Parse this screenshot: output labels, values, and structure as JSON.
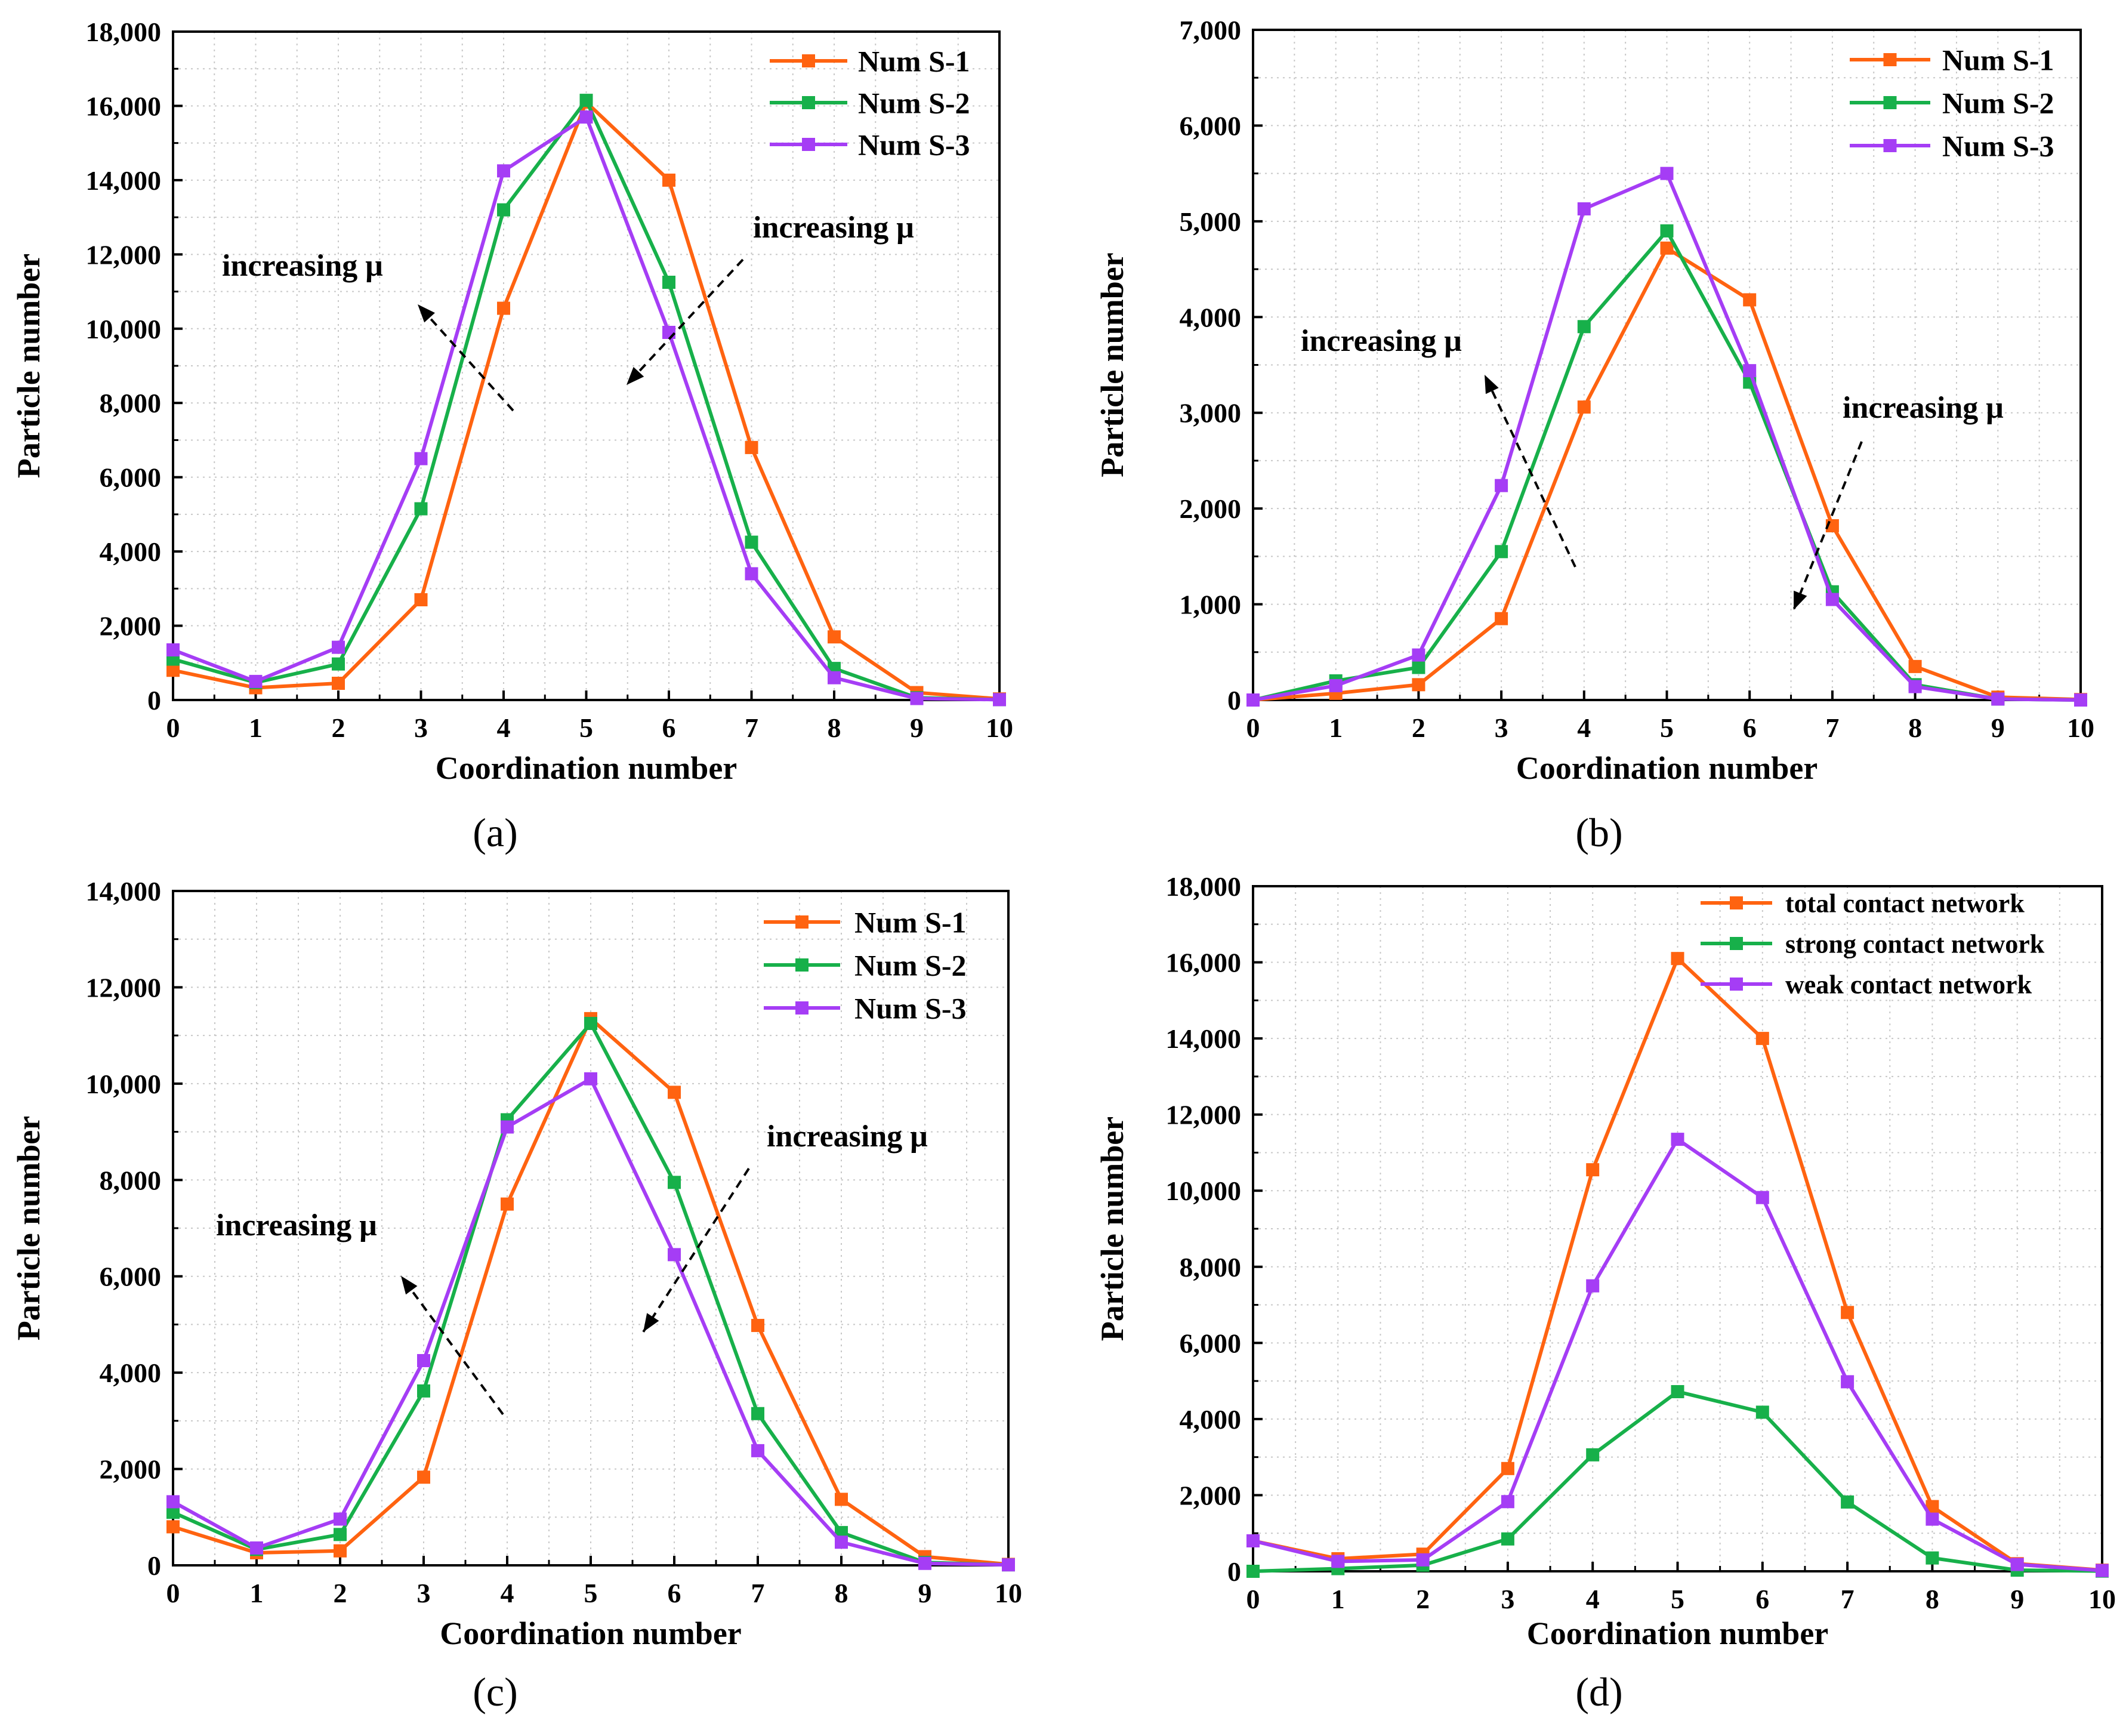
{
  "figure": {
    "panels": [
      {
        "caption": "(a)",
        "legend": [
          "Num S-1",
          "Num S-2",
          "Num S-3"
        ],
        "annotations": [
          "increasing μ",
          "increasing μ"
        ]
      },
      {
        "caption": "(b)",
        "legend": [
          "Num S-1",
          "Num S-2",
          "Num S-3"
        ],
        "annotations": [
          "increasing μ",
          "increasing μ"
        ]
      },
      {
        "caption": "(c)",
        "legend": [
          "Num S-1",
          "Num S-2",
          "Num S-3"
        ],
        "annotations": [
          "increasing μ",
          "increasing μ"
        ]
      },
      {
        "caption": "(d)",
        "legend": [
          "total contact network",
          "strong contact network",
          "weak contact network"
        ],
        "annotations": []
      }
    ],
    "colors": {
      "orange": "#ff6310",
      "green": "#17b04a",
      "purple": "#a53df5"
    }
  },
  "chart_data": [
    {
      "type": "line",
      "title": "(a)",
      "xlabel": "Coordination number",
      "ylabel": "Particle number",
      "xlim": [
        0,
        10
      ],
      "ylim": [
        0,
        18000
      ],
      "x": [
        0,
        1,
        2,
        3,
        4,
        5,
        6,
        7,
        8,
        9,
        10
      ],
      "xticks": [
        "0",
        "1",
        "2",
        "3",
        "4",
        "5",
        "6",
        "7",
        "8",
        "9",
        "10"
      ],
      "yticks": [
        "0",
        "2,000",
        "4,000",
        "6,000",
        "8,000",
        "10,000",
        "12,000",
        "14,000",
        "16,000",
        "18,000"
      ],
      "grid": true,
      "legend_position": "top-right",
      "series": [
        {
          "name": "Num S-1",
          "color": "#ff6310",
          "values": [
            800,
            330,
            450,
            2700,
            10550,
            16100,
            14000,
            6800,
            1700,
            200,
            30
          ]
        },
        {
          "name": "Num S-2",
          "color": "#17b04a",
          "values": [
            1100,
            470,
            970,
            5150,
            13200,
            16150,
            11250,
            4250,
            850,
            60,
            10
          ]
        },
        {
          "name": "Num S-3",
          "color": "#a53df5",
          "values": [
            1350,
            500,
            1420,
            6500,
            14250,
            15700,
            9900,
            3400,
            600,
            40,
            10
          ]
        }
      ]
    },
    {
      "type": "line",
      "title": "(b)",
      "xlabel": "Coordination number",
      "ylabel": "Particle number",
      "xlim": [
        0,
        10
      ],
      "ylim": [
        0,
        7000
      ],
      "x": [
        0,
        1,
        2,
        3,
        4,
        5,
        6,
        7,
        8,
        9,
        10
      ],
      "xticks": [
        "0",
        "1",
        "2",
        "3",
        "4",
        "5",
        "6",
        "7",
        "8",
        "9",
        "10"
      ],
      "yticks": [
        "0",
        "1,000",
        "2,000",
        "3,000",
        "4,000",
        "5,000",
        "6,000",
        "7,000"
      ],
      "grid": true,
      "legend_position": "top-right",
      "series": [
        {
          "name": "Num S-1",
          "color": "#ff6310",
          "values": [
            0,
            70,
            160,
            850,
            3060,
            4720,
            4180,
            1820,
            350,
            30,
            5
          ]
        },
        {
          "name": "Num S-2",
          "color": "#17b04a",
          "values": [
            0,
            200,
            340,
            1550,
            3900,
            4900,
            3320,
            1130,
            160,
            10,
            0
          ]
        },
        {
          "name": "Num S-3",
          "color": "#a53df5",
          "values": [
            0,
            150,
            470,
            2240,
            5130,
            5500,
            3440,
            1050,
            140,
            10,
            0
          ]
        }
      ]
    },
    {
      "type": "line",
      "title": "(c)",
      "xlabel": "Coordination number",
      "ylabel": "Particle number",
      "xlim": [
        0,
        10
      ],
      "ylim": [
        0,
        14000
      ],
      "x": [
        0,
        1,
        2,
        3,
        4,
        5,
        6,
        7,
        8,
        9,
        10
      ],
      "xticks": [
        "0",
        "1",
        "2",
        "3",
        "4",
        "5",
        "6",
        "7",
        "8",
        "9",
        "10"
      ],
      "yticks": [
        "0",
        "2,000",
        "4,000",
        "6,000",
        "8,000",
        "10,000",
        "12,000",
        "14,000"
      ],
      "grid": true,
      "legend_position": "top-right",
      "series": [
        {
          "name": "Num S-1",
          "color": "#ff6310",
          "values": [
            800,
            260,
            300,
            1830,
            7500,
            11350,
            9820,
            4980,
            1370,
            180,
            20
          ]
        },
        {
          "name": "Num S-2",
          "color": "#17b04a",
          "values": [
            1100,
            330,
            640,
            3620,
            9250,
            11250,
            7950,
            3150,
            680,
            60,
            10
          ]
        },
        {
          "name": "Num S-3",
          "color": "#a53df5",
          "values": [
            1320,
            360,
            960,
            4250,
            9100,
            10100,
            6450,
            2380,
            480,
            40,
            10
          ]
        }
      ]
    },
    {
      "type": "line",
      "title": "(d)",
      "xlabel": "Coordination number",
      "ylabel": "Particle number",
      "xlim": [
        0,
        10
      ],
      "ylim": [
        0,
        18000
      ],
      "x": [
        0,
        1,
        2,
        3,
        4,
        5,
        6,
        7,
        8,
        9,
        10
      ],
      "xticks": [
        "0",
        "1",
        "2",
        "3",
        "4",
        "5",
        "6",
        "7",
        "8",
        "9",
        "10"
      ],
      "yticks": [
        "0",
        "2,000",
        "4,000",
        "6,000",
        "8,000",
        "10,000",
        "12,000",
        "14,000",
        "16,000",
        "18,000"
      ],
      "grid": true,
      "legend_position": "top-right",
      "series": [
        {
          "name": "total contact network",
          "color": "#ff6310",
          "values": [
            800,
            330,
            450,
            2700,
            10550,
            16100,
            14000,
            6800,
            1700,
            200,
            30
          ]
        },
        {
          "name": "strong contact network",
          "color": "#17b04a",
          "values": [
            0,
            70,
            160,
            850,
            3060,
            4720,
            4180,
            1820,
            350,
            30,
            5
          ]
        },
        {
          "name": "weak contact network",
          "color": "#a53df5",
          "values": [
            800,
            260,
            300,
            1830,
            7500,
            11350,
            9820,
            4980,
            1370,
            180,
            20
          ]
        }
      ]
    }
  ]
}
